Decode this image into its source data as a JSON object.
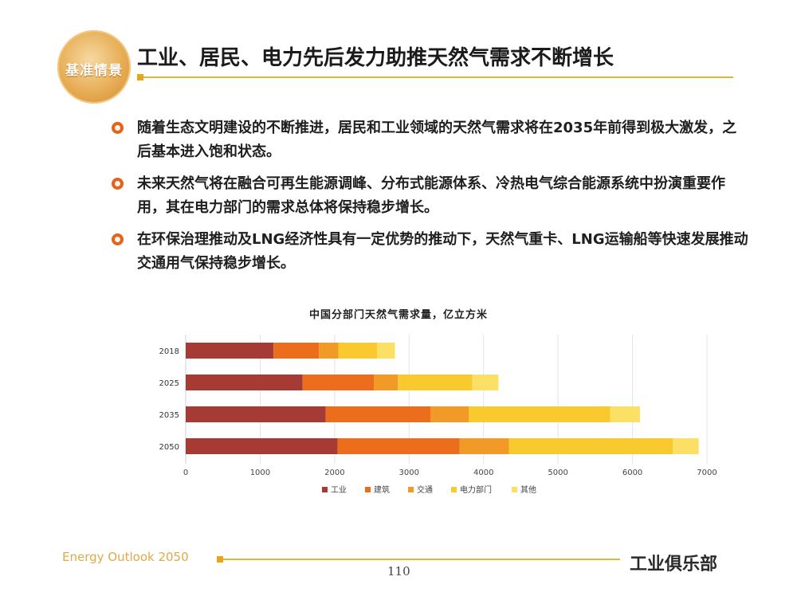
{
  "logo_text": "基准情景",
  "title": "工业、居民、电力先后发力助推天然气需求不断增长",
  "bullets": [
    "随着生态文明建设的不断推进，居民和工业领域的天然气需求将在2035年前得到极大激发，之后基本进入饱和状态。",
    "未来天然气将在融合可再生能源调峰、分布式能源体系、冷热电气综合能源系统中扮演重要作用，其在电力部门的需求总体将保持稳步增长。",
    "在环保治理推动及LNG经济性具有一定优势的推动下，天然气重卡、LNG运输船等快速发展推动交通用气保持稳步增长。"
  ],
  "footer_left": "Energy Outlook 2050",
  "page_number": "110",
  "watermark_text": "工业俱乐部",
  "chart_data": {
    "type": "bar",
    "orientation": "horizontal",
    "stacked": true,
    "title": "中国分部门天然气需求量，亿立方米",
    "categories": [
      "2018",
      "2025",
      "2035",
      "2050"
    ],
    "series": [
      {
        "name": "工业",
        "color": "#a63a34",
        "values": [
          1180,
          1570,
          1880,
          2040
        ]
      },
      {
        "name": "建筑",
        "color": "#ec6d1c",
        "values": [
          610,
          960,
          1410,
          1640
        ]
      },
      {
        "name": "交通",
        "color": "#f29a27",
        "values": [
          260,
          320,
          510,
          660
        ]
      },
      {
        "name": "电力部门",
        "color": "#f9c92f",
        "values": [
          520,
          1000,
          1900,
          2200
        ]
      },
      {
        "name": "其他",
        "color": "#fbe065",
        "values": [
          240,
          350,
          400,
          350
        ]
      }
    ],
    "xlim": [
      0,
      7000
    ],
    "xticks": [
      0,
      1000,
      2000,
      3000,
      4000,
      5000,
      6000,
      7000
    ],
    "grid": true,
    "legend_position": "bottom"
  }
}
